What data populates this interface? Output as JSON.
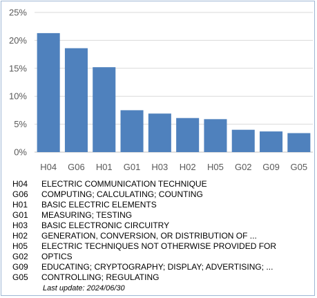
{
  "chart_data": {
    "type": "bar",
    "categories": [
      "H04",
      "G06",
      "H01",
      "G01",
      "H03",
      "H02",
      "H05",
      "G02",
      "G09",
      "G05"
    ],
    "values": [
      21.3,
      18.6,
      15.2,
      7.5,
      6.9,
      6.1,
      5.9,
      4.0,
      3.7,
      3.4
    ],
    "yticks": [
      "0%",
      "5%",
      "10%",
      "15%",
      "20%",
      "25%"
    ],
    "ylim": [
      0,
      25
    ],
    "grid": true,
    "bar_color": "#4f81bd",
    "legend": "none"
  },
  "legend_items": [
    {
      "code": "H04",
      "desc": "ELECTRIC COMMUNICATION TECHNIQUE"
    },
    {
      "code": "G06",
      "desc": "COMPUTING; CALCULATING; COUNTING"
    },
    {
      "code": "H01",
      "desc": "BASIC ELECTRIC ELEMENTS"
    },
    {
      "code": "G01",
      "desc": "MEASURING; TESTING"
    },
    {
      "code": "H03",
      "desc": "BASIC ELECTRONIC CIRCUITRY"
    },
    {
      "code": "H02",
      "desc": "GENERATION, CONVERSION, OR DISTRIBUTION OF ..."
    },
    {
      "code": "H05",
      "desc": "ELECTRIC TECHNIQUES NOT OTHERWISE PROVIDED FOR"
    },
    {
      "code": "G02",
      "desc": "OPTICS"
    },
    {
      "code": "G09",
      "desc": "EDUCATING; CRYPTOGRAPHY; DISPLAY; ADVERTISING; ..."
    },
    {
      "code": "G05",
      "desc": "CONTROLLING; REGULATING"
    }
  ],
  "footer": {
    "last_update": "Last update:  2024/06/30"
  }
}
